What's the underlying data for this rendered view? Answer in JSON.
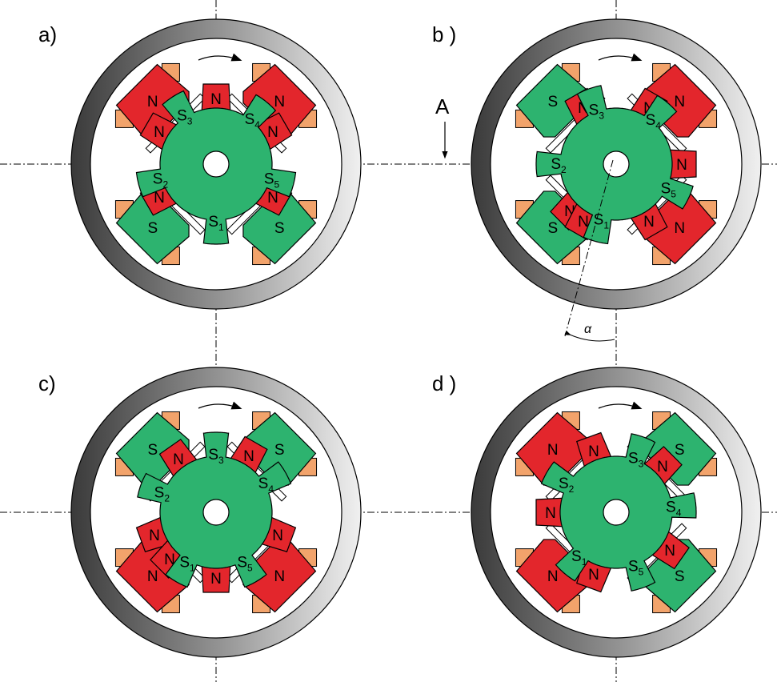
{
  "colors": {
    "stator_ring_light": "#e8e8e8",
    "stator_ring_dark": "#3a3a3a",
    "rotor": "#2db36f",
    "north": "#e3262c",
    "south": "#2db36f",
    "winding": "#f2a36b",
    "outline": "#000000"
  },
  "annotations": {
    "section_marker": "A",
    "angle_symbol": "α"
  },
  "panels": [
    {
      "id": "a",
      "label": "a)",
      "stator_poles": [
        "N",
        "N",
        "S",
        "S"
      ],
      "rotor_poles": [
        {
          "label": "N"
        },
        {
          "label": "N"
        },
        {
          "label": "N"
        },
        {
          "label": "N"
        },
        {
          "label": "N"
        }
      ],
      "rotor_teeth": [
        {
          "base": "S",
          "sub": "1"
        },
        {
          "base": "S",
          "sub": "2"
        },
        {
          "base": "S",
          "sub": "3"
        },
        {
          "base": "S",
          "sub": "4"
        },
        {
          "base": "S",
          "sub": "5"
        }
      ]
    },
    {
      "id": "b",
      "label": "b )",
      "stator_poles": [
        "N",
        "N",
        "S",
        "S"
      ],
      "rotor_poles": [
        {
          "label": "N"
        },
        {
          "label": "N"
        },
        {
          "label": "N"
        },
        {
          "label": "N"
        },
        {
          "label": "N"
        },
        {
          "label": "N"
        }
      ],
      "rotor_teeth": [
        {
          "base": "S",
          "sub": "1"
        },
        {
          "base": "S",
          "sub": "2"
        },
        {
          "base": "S",
          "sub": "3"
        },
        {
          "base": "S",
          "sub": "4"
        },
        {
          "base": "S",
          "sub": "5"
        }
      ]
    },
    {
      "id": "c",
      "label": "c)",
      "stator_poles": [
        "S",
        "S",
        "N",
        "N"
      ],
      "rotor_poles": [
        {
          "label": "N"
        },
        {
          "label": "N"
        },
        {
          "label": "N"
        },
        {
          "label": "N"
        },
        {
          "label": "N"
        },
        {
          "label": "N"
        }
      ],
      "rotor_teeth": [
        {
          "base": "S",
          "sub": "1"
        },
        {
          "base": "S",
          "sub": "2"
        },
        {
          "base": "S",
          "sub": "3"
        },
        {
          "base": "S",
          "sub": "4"
        },
        {
          "base": "S",
          "sub": "5"
        }
      ]
    },
    {
      "id": "d",
      "label": "d )",
      "stator_poles": [
        "N",
        "S",
        "N",
        "S"
      ],
      "rotor_poles": [
        {
          "label": "N"
        },
        {
          "label": "N"
        },
        {
          "label": "N"
        },
        {
          "label": "N"
        },
        {
          "label": "N"
        }
      ],
      "rotor_teeth": [
        {
          "base": "S",
          "sub": "1"
        },
        {
          "base": "S",
          "sub": "2"
        },
        {
          "base": "S",
          "sub": "3"
        },
        {
          "base": "S",
          "sub": "4"
        },
        {
          "base": "S",
          "sub": "5"
        }
      ]
    }
  ]
}
